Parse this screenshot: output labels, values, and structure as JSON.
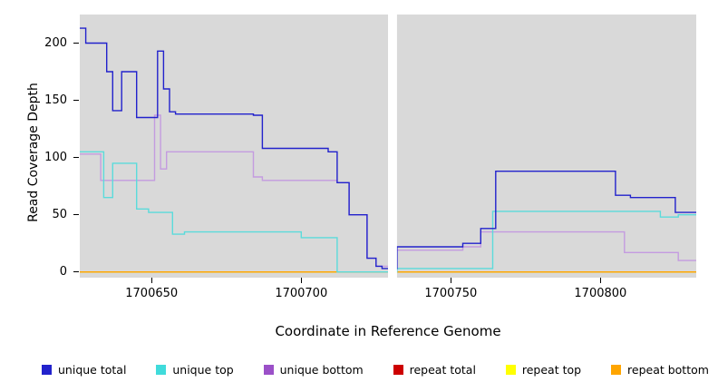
{
  "chart_data": {
    "type": "line",
    "title": "",
    "xlabel": "Coordinate in Reference Genome",
    "ylabel": "Read Coverage Depth",
    "xlim": [
      1700626,
      1700832
    ],
    "ylim": [
      0,
      220
    ],
    "xticks": [
      1700650,
      1700700,
      1700750,
      1700800
    ],
    "yticks": [
      0,
      50,
      100,
      150,
      200
    ],
    "plot_background": "#d9d9d9",
    "gap_region": {
      "from": 1700729,
      "to": 1700732,
      "color": "#ffffff"
    },
    "line_style": "step",
    "grid": false,
    "legend_position": "bottom",
    "series": [
      {
        "name": "repeat total",
        "color": "#CD0000",
        "steps": [
          [
            1700626,
            0
          ]
        ]
      },
      {
        "name": "repeat top",
        "color": "#FFFF00",
        "steps": [
          [
            1700626,
            0
          ]
        ]
      },
      {
        "name": "repeat bottom",
        "color": "#FFA500",
        "steps": [
          [
            1700626,
            0
          ]
        ]
      },
      {
        "name": "unique bottom",
        "color": "#C49BE0",
        "steps": [
          [
            1700626,
            103
          ],
          [
            1700633,
            80
          ],
          [
            1700651,
            137
          ],
          [
            1700653,
            90
          ],
          [
            1700655,
            105
          ],
          [
            1700684,
            83
          ],
          [
            1700687,
            80
          ],
          [
            1700712,
            78
          ],
          [
            1700716,
            50
          ],
          [
            1700722,
            12
          ],
          [
            1700725,
            5
          ],
          [
            1700732,
            19
          ],
          [
            1700754,
            22
          ],
          [
            1700760,
            35
          ],
          [
            1700808,
            17
          ],
          [
            1700826,
            10
          ]
        ]
      },
      {
        "name": "unique top",
        "color": "#5BDBDB",
        "steps": [
          [
            1700626,
            105
          ],
          [
            1700634,
            65
          ],
          [
            1700637,
            95
          ],
          [
            1700645,
            55
          ],
          [
            1700649,
            52
          ],
          [
            1700657,
            33
          ],
          [
            1700661,
            35
          ],
          [
            1700700,
            30
          ],
          [
            1700712,
            0
          ],
          [
            1700732,
            3
          ],
          [
            1700764,
            53
          ],
          [
            1700820,
            48
          ],
          [
            1700826,
            50
          ]
        ]
      },
      {
        "name": "unique total",
        "color": "#2222CC",
        "steps": [
          [
            1700626,
            213
          ],
          [
            1700628,
            200
          ],
          [
            1700635,
            175
          ],
          [
            1700637,
            141
          ],
          [
            1700640,
            175
          ],
          [
            1700645,
            135
          ],
          [
            1700652,
            193
          ],
          [
            1700654,
            160
          ],
          [
            1700656,
            140
          ],
          [
            1700658,
            138
          ],
          [
            1700684,
            137
          ],
          [
            1700687,
            108
          ],
          [
            1700709,
            105
          ],
          [
            1700712,
            78
          ],
          [
            1700716,
            50
          ],
          [
            1700722,
            12
          ],
          [
            1700725,
            5
          ],
          [
            1700727,
            3
          ],
          [
            1700732,
            22
          ],
          [
            1700754,
            25
          ],
          [
            1700760,
            38
          ],
          [
            1700765,
            88
          ],
          [
            1700805,
            67
          ],
          [
            1700810,
            65
          ],
          [
            1700825,
            52
          ]
        ]
      }
    ],
    "legend": [
      {
        "label": "unique total",
        "color": "#2222CC"
      },
      {
        "label": "unique top",
        "color": "#40DBDB"
      },
      {
        "label": "unique bottom",
        "color": "#9B50C8"
      },
      {
        "label": "repeat total",
        "color": "#CD0000"
      },
      {
        "label": "repeat top",
        "color": "#FFFF00"
      },
      {
        "label": "repeat bottom",
        "color": "#FFA500"
      }
    ]
  }
}
